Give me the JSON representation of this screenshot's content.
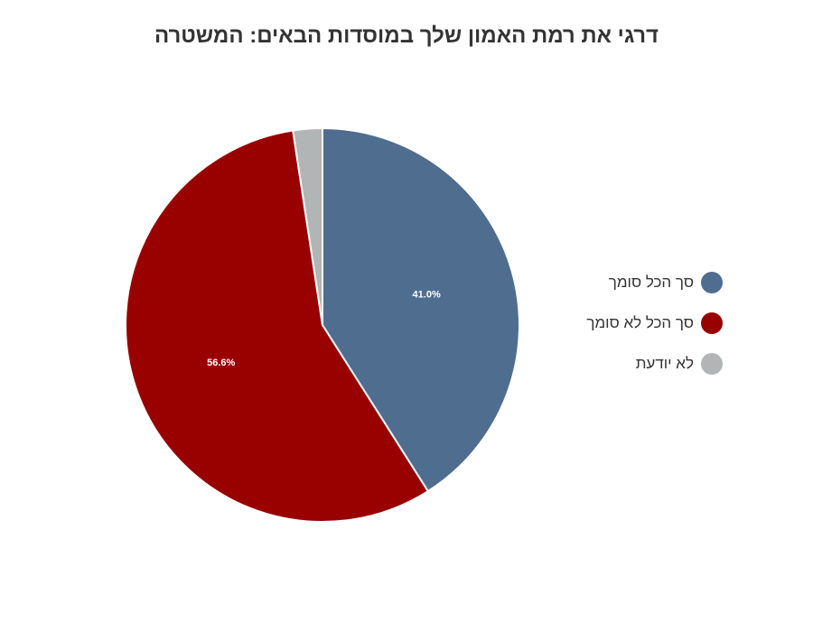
{
  "chart_data": {
    "type": "pie",
    "title": "דרגי את רמת האמון שלך במוסדות הבאים: המשטרה",
    "categories": [
      "סך הכל סומך",
      "סך הכל לא סומך",
      "לא יודעת"
    ],
    "values": [
      41.0,
      56.6,
      2.4
    ],
    "data_labels": [
      "41.0%",
      "56.6%",
      ""
    ],
    "colors": [
      "#4F6D8F",
      "#990000",
      "#B1B5B6"
    ],
    "legend_position": "right",
    "start_angle": "top, clockwise"
  }
}
